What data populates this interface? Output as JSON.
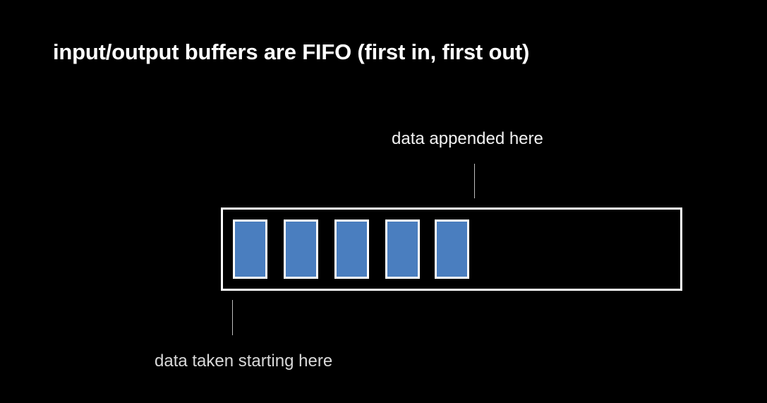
{
  "title": "input/output buffers are FIFO (first in, first out)",
  "labels": {
    "append": "data appended here",
    "taken": "data taken starting here"
  },
  "buffer": {
    "filled_cells": 5,
    "cell_color": "#4a7ebf",
    "border_color": "#ffffff"
  }
}
